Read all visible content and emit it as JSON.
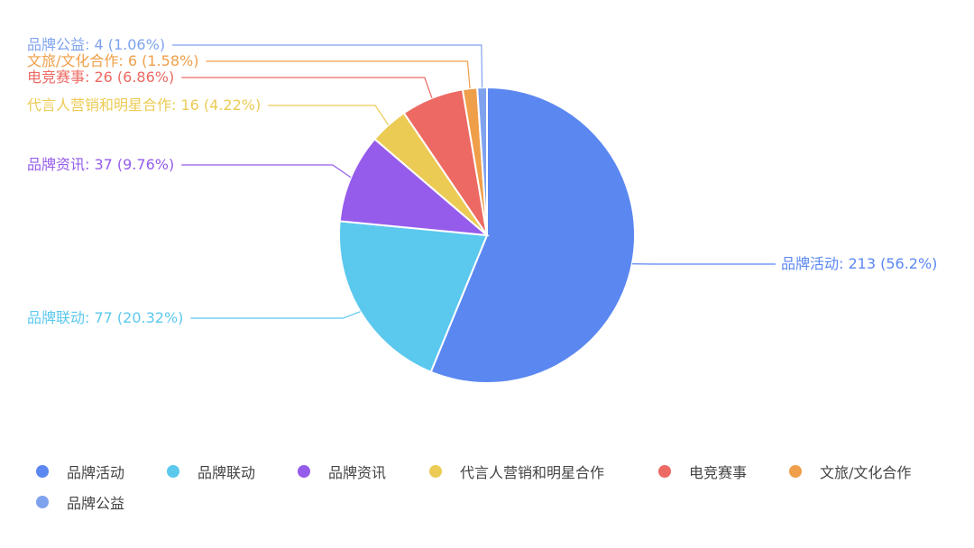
{
  "chart_data": {
    "type": "pie",
    "title": "",
    "legend_position": "bottom",
    "slices": [
      {
        "name": "品牌活动",
        "value": 213,
        "percent": "56.2%",
        "color": "#5B87F1"
      },
      {
        "name": "品牌联动",
        "value": 77,
        "percent": "20.32%",
        "color": "#5BC8EE"
      },
      {
        "name": "品牌资讯",
        "value": 37,
        "percent": "9.76%",
        "color": "#955CEB"
      },
      {
        "name": "代言人营销和明星合作",
        "value": 16,
        "percent": "4.22%",
        "color": "#ECCB55"
      },
      {
        "name": "电竞赛事",
        "value": 26,
        "percent": "6.86%",
        "color": "#EC6A63"
      },
      {
        "name": "文旅/文化合作",
        "value": 6,
        "percent": "1.58%",
        "color": "#EF9F4A"
      },
      {
        "name": "品牌公益",
        "value": 4,
        "percent": "1.06%",
        "color": "#7FA2EE"
      }
    ]
  }
}
